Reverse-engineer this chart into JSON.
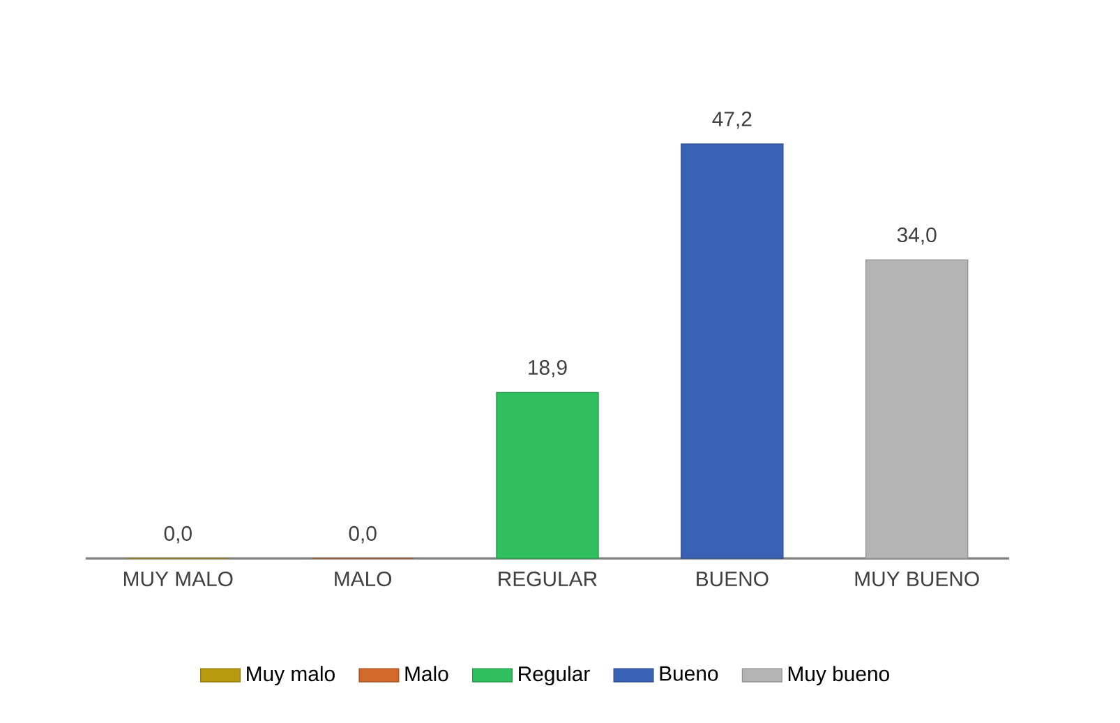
{
  "chart_data": {
    "type": "bar",
    "categories": [
      "MUY MALO",
      "MALO",
      "REGULAR",
      "BUENO",
      "MUY BUENO"
    ],
    "series": [
      {
        "name": "Muy malo",
        "color": "#b89a10",
        "values": [
          0.0,
          null,
          null,
          null,
          null
        ],
        "value_labels": [
          "0,0",
          null,
          null,
          null,
          null
        ]
      },
      {
        "name": "Malo",
        "color": "#d0692a",
        "values": [
          null,
          0.0,
          null,
          null,
          null
        ],
        "value_labels": [
          null,
          "0,0",
          null,
          null,
          null
        ]
      },
      {
        "name": "Regular",
        "color": "#2fbf5f",
        "values": [
          null,
          null,
          18.9,
          null,
          null
        ],
        "value_labels": [
          null,
          null,
          "18,9",
          null,
          null
        ]
      },
      {
        "name": "Bueno",
        "color": "#3a62b4",
        "values": [
          null,
          null,
          null,
          47.2,
          null
        ],
        "value_labels": [
          null,
          null,
          null,
          "47,2",
          null
        ]
      },
      {
        "name": "Muy bueno",
        "color": "#b4b4b4",
        "values": [
          null,
          null,
          null,
          null,
          34.0
        ],
        "value_labels": [
          null,
          null,
          null,
          null,
          "34,0"
        ]
      }
    ],
    "legend": "bottom"
  }
}
